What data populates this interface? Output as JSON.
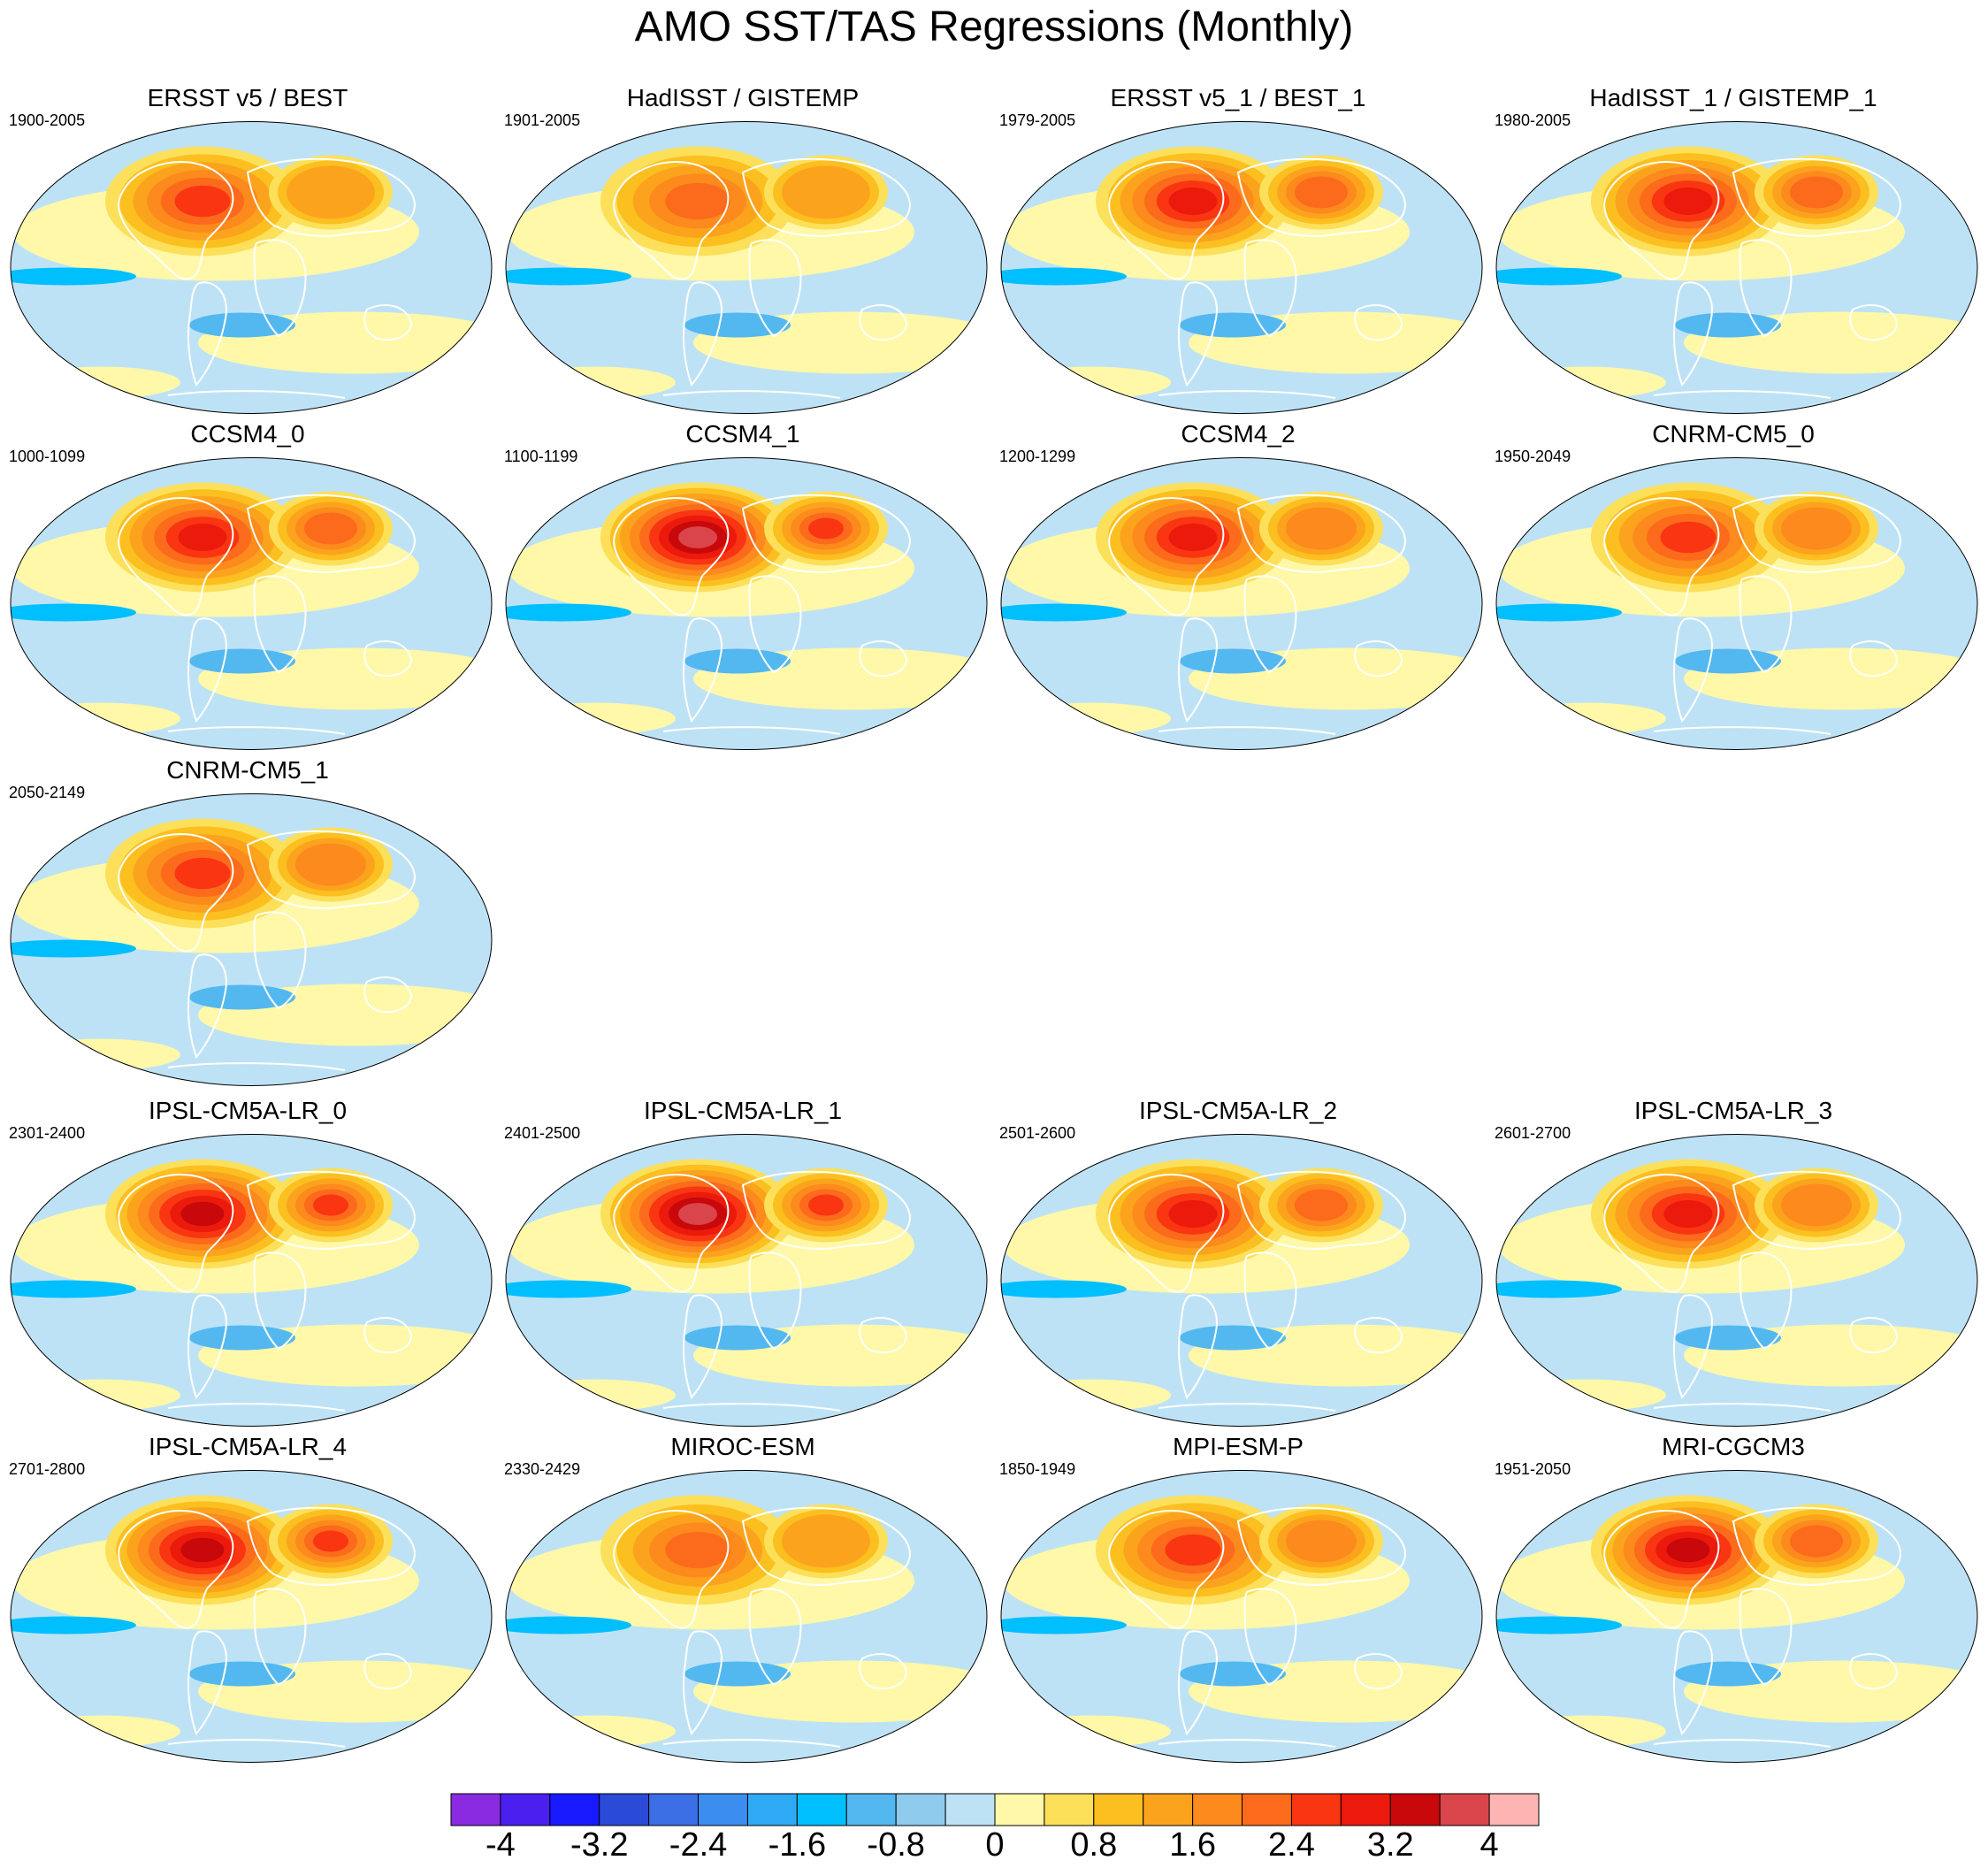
{
  "title": "AMO SST/TAS Regressions (Monthly)",
  "colors": {
    "scale": [
      "#8a2be2",
      "#4b1fef",
      "#1919ff",
      "#2a4bd7",
      "#3c6ee6",
      "#3b8ef0",
      "#2eaaf5",
      "#00bfff",
      "#53b8f0",
      "#8fcbed",
      "#bee2f5",
      "#fff8a8",
      "#fce05a",
      "#fcbf20",
      "#fca31d",
      "#fc8a1c",
      "#fc6a1c",
      "#f93512",
      "#eb1a0c",
      "#c8080a",
      "#d9454a",
      "#ffb4b4"
    ],
    "ocean_neutral_cool": "#bee2f5",
    "ocean_neutral_warm": "#fff8a8",
    "coastline": "#ffffff",
    "background": "#ffffff"
  },
  "panels": [
    {
      "title": "ERSST v5 / BEST",
      "period": "1900-2005",
      "row": 0,
      "col": 0,
      "hot": 2.6
    },
    {
      "title": "HadISST / GISTEMP",
      "period": "1901-2005",
      "row": 0,
      "col": 1,
      "hot": 2.4
    },
    {
      "title": "ERSST v5_1 / BEST_1",
      "period": "1979-2005",
      "row": 0,
      "col": 2,
      "hot": 3.1
    },
    {
      "title": "HadISST_1 / GISTEMP_1",
      "period": "1980-2005",
      "row": 0,
      "col": 3,
      "hot": 3.3
    },
    {
      "title": "CCSM4_0",
      "period": "1000-1099",
      "row": 1,
      "col": 0,
      "hot": 3.2
    },
    {
      "title": "CCSM4_1",
      "period": "1100-1199",
      "row": 1,
      "col": 1,
      "hot": 3.8
    },
    {
      "title": "CCSM4_2",
      "period": "1200-1299",
      "row": 1,
      "col": 2,
      "hot": 3.0
    },
    {
      "title": "CNRM-CM5_0",
      "period": "1950-2049",
      "row": 1,
      "col": 3,
      "hot": 2.8
    },
    {
      "title": "CNRM-CM5_1",
      "period": "2050-2149",
      "row": 2,
      "col": 0,
      "hot": 2.9
    },
    {
      "title": "IPSL-CM5A-LR_0",
      "period": "2301-2400",
      "row": 3,
      "col": 0,
      "hot": 3.6
    },
    {
      "title": "IPSL-CM5A-LR_1",
      "period": "2401-2500",
      "row": 3,
      "col": 1,
      "hot": 3.8
    },
    {
      "title": "IPSL-CM5A-LR_2",
      "period": "2501-2600",
      "row": 3,
      "col": 2,
      "hot": 3.3
    },
    {
      "title": "IPSL-CM5A-LR_3",
      "period": "2601-2700",
      "row": 3,
      "col": 3,
      "hot": 3.0
    },
    {
      "title": "IPSL-CM5A-LR_4",
      "period": "2701-2800",
      "row": 4,
      "col": 0,
      "hot": 3.6
    },
    {
      "title": "MIROC-ESM",
      "period": "2330-2429",
      "row": 4,
      "col": 1,
      "hot": 2.5
    },
    {
      "title": "MPI-ESM-P",
      "period": "1850-1949",
      "row": 4,
      "col": 2,
      "hot": 2.9
    },
    {
      "title": "MRI-CGCM3",
      "period": "1951-2050",
      "row": 4,
      "col": 3,
      "hot": 3.4
    }
  ],
  "colorbar": {
    "min": -4.4,
    "max": 4.4,
    "step": 0.4,
    "labels": [
      "-4",
      "-3.2",
      "-2.4",
      "-1.6",
      "-0.8",
      "0",
      "0.8",
      "1.6",
      "2.4",
      "3.2",
      "4"
    ],
    "label_values": [
      -4,
      -3.2,
      -2.4,
      -1.6,
      -0.8,
      0,
      0.8,
      1.6,
      2.4,
      3.2,
      4
    ]
  }
}
